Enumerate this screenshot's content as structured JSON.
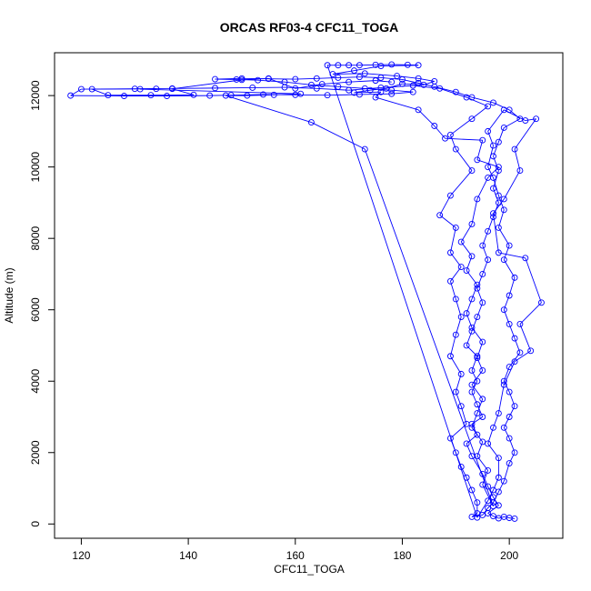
{
  "chart_data": {
    "type": "line",
    "title": "ORCAS RF03-4 CFC11_TOGA",
    "xlabel": "CFC11_TOGA",
    "ylabel": "Altitude (m)",
    "xlim": [
      115,
      210
    ],
    "ylim": [
      -400,
      13200
    ],
    "x_ticks": [
      120,
      140,
      160,
      180,
      200
    ],
    "y_ticks": [
      0,
      2000,
      4000,
      6000,
      8000,
      10000,
      12000
    ],
    "x_tick_labels": [
      "120",
      "140",
      "160",
      "180",
      "200"
    ],
    "y_tick_labels": [
      "0",
      "2000",
      "4000",
      "6000",
      "8000",
      "10000",
      "12000"
    ],
    "series_color": "#0000ff",
    "markers": "open-circle",
    "grid": false,
    "legend": "none",
    "points": [
      [
        201,
        150
      ],
      [
        200,
        170
      ],
      [
        199,
        200
      ],
      [
        198,
        160
      ],
      [
        197,
        220
      ],
      [
        196,
        300
      ],
      [
        198,
        520
      ],
      [
        197,
        750
      ],
      [
        196,
        1050
      ],
      [
        195,
        1400
      ],
      [
        193,
        1900
      ],
      [
        192,
        2250
      ],
      [
        194,
        2500
      ],
      [
        193,
        2800
      ],
      [
        195,
        3000
      ],
      [
        194,
        3350
      ],
      [
        193,
        3700
      ],
      [
        194,
        4000
      ],
      [
        193,
        4300
      ],
      [
        194,
        4700
      ],
      [
        192,
        5000
      ],
      [
        193,
        5400
      ],
      [
        194,
        5800
      ],
      [
        195,
        6200
      ],
      [
        194,
        6600
      ],
      [
        195,
        7000
      ],
      [
        196,
        7400
      ],
      [
        195,
        7800
      ],
      [
        196,
        8200
      ],
      [
        197,
        8600
      ],
      [
        198,
        9000
      ],
      [
        197,
        9400
      ],
      [
        198,
        9900
      ],
      [
        197,
        10300
      ],
      [
        198,
        10700
      ],
      [
        199,
        11100
      ],
      [
        202,
        11350
      ],
      [
        200,
        11600
      ],
      [
        197,
        11800
      ],
      [
        193,
        11950
      ],
      [
        190,
        12100
      ],
      [
        186,
        12250
      ],
      [
        183,
        12350
      ],
      [
        180,
        12450
      ],
      [
        176,
        12500
      ],
      [
        172,
        12520
      ],
      [
        168,
        12500
      ],
      [
        164,
        12480
      ],
      [
        160,
        12460
      ],
      [
        155,
        12470
      ],
      [
        150,
        12480
      ],
      [
        145,
        12460
      ],
      [
        149,
        12450
      ],
      [
        153,
        12430
      ],
      [
        158,
        12380
      ],
      [
        163,
        12300
      ],
      [
        168,
        12250
      ],
      [
        173,
        12200
      ],
      [
        178,
        12150
      ],
      [
        182,
        12100
      ],
      [
        178,
        12050
      ],
      [
        172,
        12030
      ],
      [
        166,
        12010
      ],
      [
        160,
        12020
      ],
      [
        154,
        12030
      ],
      [
        148,
        12010
      ],
      [
        144,
        12000
      ],
      [
        136,
        11990
      ],
      [
        128,
        11990
      ],
      [
        118,
        12000
      ],
      [
        120,
        12180
      ],
      [
        130,
        12190
      ],
      [
        137,
        12200
      ],
      [
        145,
        12210
      ],
      [
        152,
        12220
      ],
      [
        158,
        12230
      ],
      [
        164,
        12200
      ],
      [
        170,
        12150
      ],
      [
        176,
        12220
      ],
      [
        182,
        12280
      ],
      [
        187,
        12200
      ],
      [
        192,
        11950
      ],
      [
        196,
        11700
      ],
      [
        193,
        11350
      ],
      [
        189,
        10900
      ],
      [
        190,
        10500
      ],
      [
        193,
        9900
      ],
      [
        189,
        9200
      ],
      [
        187,
        8650
      ],
      [
        190,
        8300
      ],
      [
        189,
        7600
      ],
      [
        191,
        7200
      ],
      [
        189,
        6800
      ],
      [
        190,
        6300
      ],
      [
        191,
        5800
      ],
      [
        190,
        5300
      ],
      [
        189,
        4700
      ],
      [
        191,
        4200
      ],
      [
        190,
        3700
      ],
      [
        191,
        3300
      ],
      [
        192,
        2800
      ],
      [
        189,
        2400
      ],
      [
        190,
        2000
      ],
      [
        191,
        1600
      ],
      [
        192,
        1300
      ],
      [
        193,
        950
      ],
      [
        194,
        600
      ],
      [
        194,
        300
      ],
      [
        193,
        200
      ],
      [
        195,
        250
      ],
      [
        196,
        450
      ],
      [
        197,
        600
      ],
      [
        198,
        900
      ],
      [
        199,
        1200
      ],
      [
        200,
        1700
      ],
      [
        201,
        2000
      ],
      [
        200,
        2400
      ],
      [
        199,
        2700
      ],
      [
        200,
        3000
      ],
      [
        201,
        3300
      ],
      [
        200,
        3700
      ],
      [
        199,
        4000
      ],
      [
        200,
        4400
      ],
      [
        202,
        4800
      ],
      [
        201,
        5200
      ],
      [
        200,
        5600
      ],
      [
        199,
        6000
      ],
      [
        200,
        6400
      ],
      [
        201,
        6900
      ],
      [
        199,
        7400
      ],
      [
        200,
        7800
      ],
      [
        198,
        8300
      ],
      [
        199,
        8800
      ],
      [
        198,
        9200
      ],
      [
        197,
        9700
      ],
      [
        196,
        10000
      ],
      [
        197,
        10600
      ],
      [
        196,
        11000
      ],
      [
        199,
        11600
      ],
      [
        203,
        11300
      ],
      [
        205,
        11350
      ],
      [
        201,
        10500
      ],
      [
        202,
        9900
      ],
      [
        199,
        9100
      ],
      [
        197,
        8700
      ],
      [
        198,
        7600
      ],
      [
        203,
        7450
      ],
      [
        206,
        6200
      ],
      [
        202,
        5600
      ],
      [
        204,
        4850
      ],
      [
        201,
        4550
      ],
      [
        199,
        3900
      ],
      [
        198,
        3100
      ],
      [
        197,
        2700
      ],
      [
        196,
        2250
      ],
      [
        198,
        1850
      ],
      [
        198,
        1300
      ],
      [
        197,
        950
      ],
      [
        196,
        650
      ],
      [
        194,
        180
      ],
      [
        166,
        12850
      ],
      [
        168,
        12850
      ],
      [
        170,
        12850
      ],
      [
        172,
        12850
      ],
      [
        175,
        12860
      ],
      [
        178,
        12870
      ],
      [
        181,
        12860
      ],
      [
        183,
        12850
      ],
      [
        176,
        12830
      ],
      [
        171,
        12700
      ],
      [
        167,
        12600
      ],
      [
        173,
        12620
      ],
      [
        179,
        12550
      ],
      [
        183,
        12480
      ],
      [
        186,
        12400
      ],
      [
        184,
        12300
      ],
      [
        180,
        12330
      ],
      [
        177,
        12200
      ],
      [
        174,
        12150
      ],
      [
        171,
        12080
      ],
      [
        176,
        12100
      ],
      [
        175,
        11950
      ],
      [
        183,
        11600
      ],
      [
        186,
        11150
      ],
      [
        188,
        10800
      ],
      [
        195,
        10750
      ],
      [
        194,
        10200
      ],
      [
        198,
        10000
      ],
      [
        196,
        9700
      ],
      [
        194,
        9100
      ],
      [
        193,
        8400
      ],
      [
        191,
        7900
      ],
      [
        193,
        7500
      ],
      [
        192,
        7100
      ],
      [
        194,
        6700
      ],
      [
        193,
        6300
      ],
      [
        192,
        5900
      ],
      [
        193,
        5500
      ],
      [
        195,
        5100
      ],
      [
        194,
        4650
      ],
      [
        195,
        4300
      ],
      [
        193,
        3900
      ],
      [
        195,
        3500
      ],
      [
        194,
        3100
      ],
      [
        193,
        2700
      ],
      [
        195,
        2300
      ],
      [
        194,
        1900
      ],
      [
        196,
        1500
      ],
      [
        195,
        1100
      ],
      [
        197,
        500
      ],
      [
        173,
        10500
      ],
      [
        163,
        11250
      ],
      [
        147,
        12000
      ],
      [
        151,
        12000
      ],
      [
        156,
        12020
      ],
      [
        161,
        12050
      ],
      [
        131,
        12180
      ],
      [
        134,
        12190
      ],
      [
        122,
        12180
      ],
      [
        125,
        12010
      ],
      [
        133,
        12010
      ],
      [
        141,
        12020
      ],
      [
        137,
        12190
      ],
      [
        150,
        12440
      ],
      [
        155,
        12480
      ],
      [
        160,
        12200
      ],
      [
        165,
        12320
      ],
      [
        170,
        12380
      ],
      [
        175,
        12420
      ],
      [
        178,
        12380
      ]
    ]
  }
}
